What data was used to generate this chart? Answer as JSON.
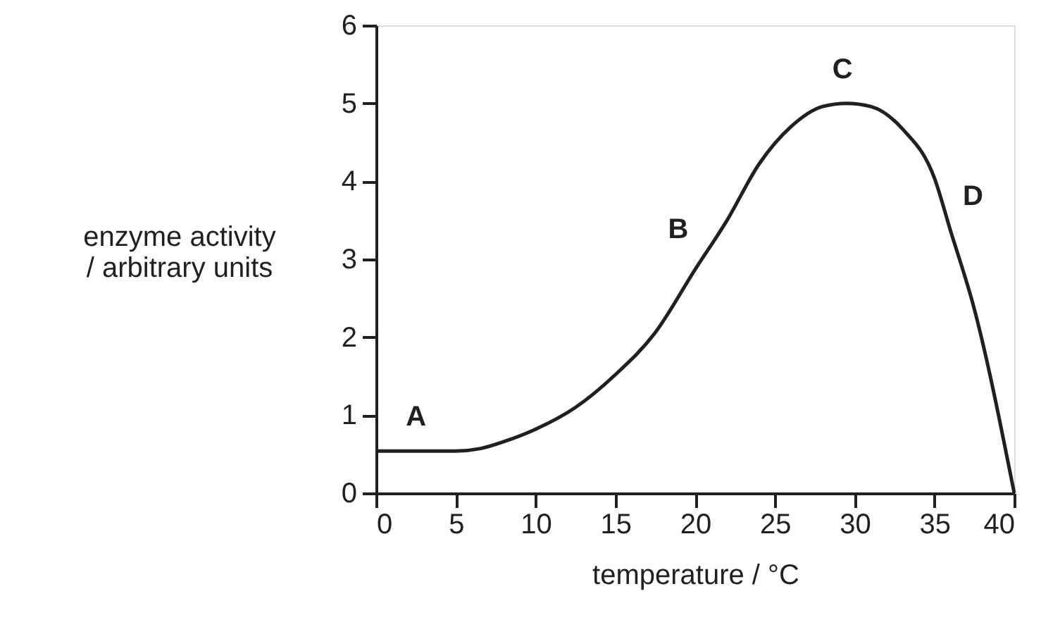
{
  "chart_data": {
    "type": "line",
    "xlabel": "temperature / °C",
    "ylabel": "enzyme activity\n/ arbitrary units",
    "x": [
      0,
      2.5,
      5,
      6.5,
      8,
      10,
      12.5,
      15,
      17.5,
      20,
      22,
      24,
      26,
      28,
      29.5,
      31,
      33,
      35,
      36,
      37.5,
      40
    ],
    "series": [
      {
        "color": "#231f20",
        "values": [
          0.54,
          0.54,
          0.54,
          0.57,
          0.66,
          0.82,
          1.1,
          1.52,
          2.06,
          2.87,
          3.5,
          4.22,
          4.7,
          4.96,
          5.0,
          4.96,
          4.67,
          4.04,
          3.37,
          2.36,
          0
        ]
      }
    ],
    "xlim": [
      0,
      40
    ],
    "ylim": [
      0,
      6
    ],
    "xticks": [
      0,
      5,
      10,
      15,
      20,
      25,
      30,
      35,
      40
    ],
    "yticks": [
      0,
      1,
      2,
      3,
      4,
      5,
      6
    ],
    "grid": false,
    "marker": "none",
    "line_style": "solid",
    "annotations": [
      {
        "text": "A",
        "x": 2.5,
        "y": 0.54
      },
      {
        "text": "B",
        "x": 20,
        "y": 2.87
      },
      {
        "text": "C",
        "x": 29.5,
        "y": 5.0
      },
      {
        "text": "D",
        "x": 36,
        "y": 3.37
      }
    ]
  }
}
